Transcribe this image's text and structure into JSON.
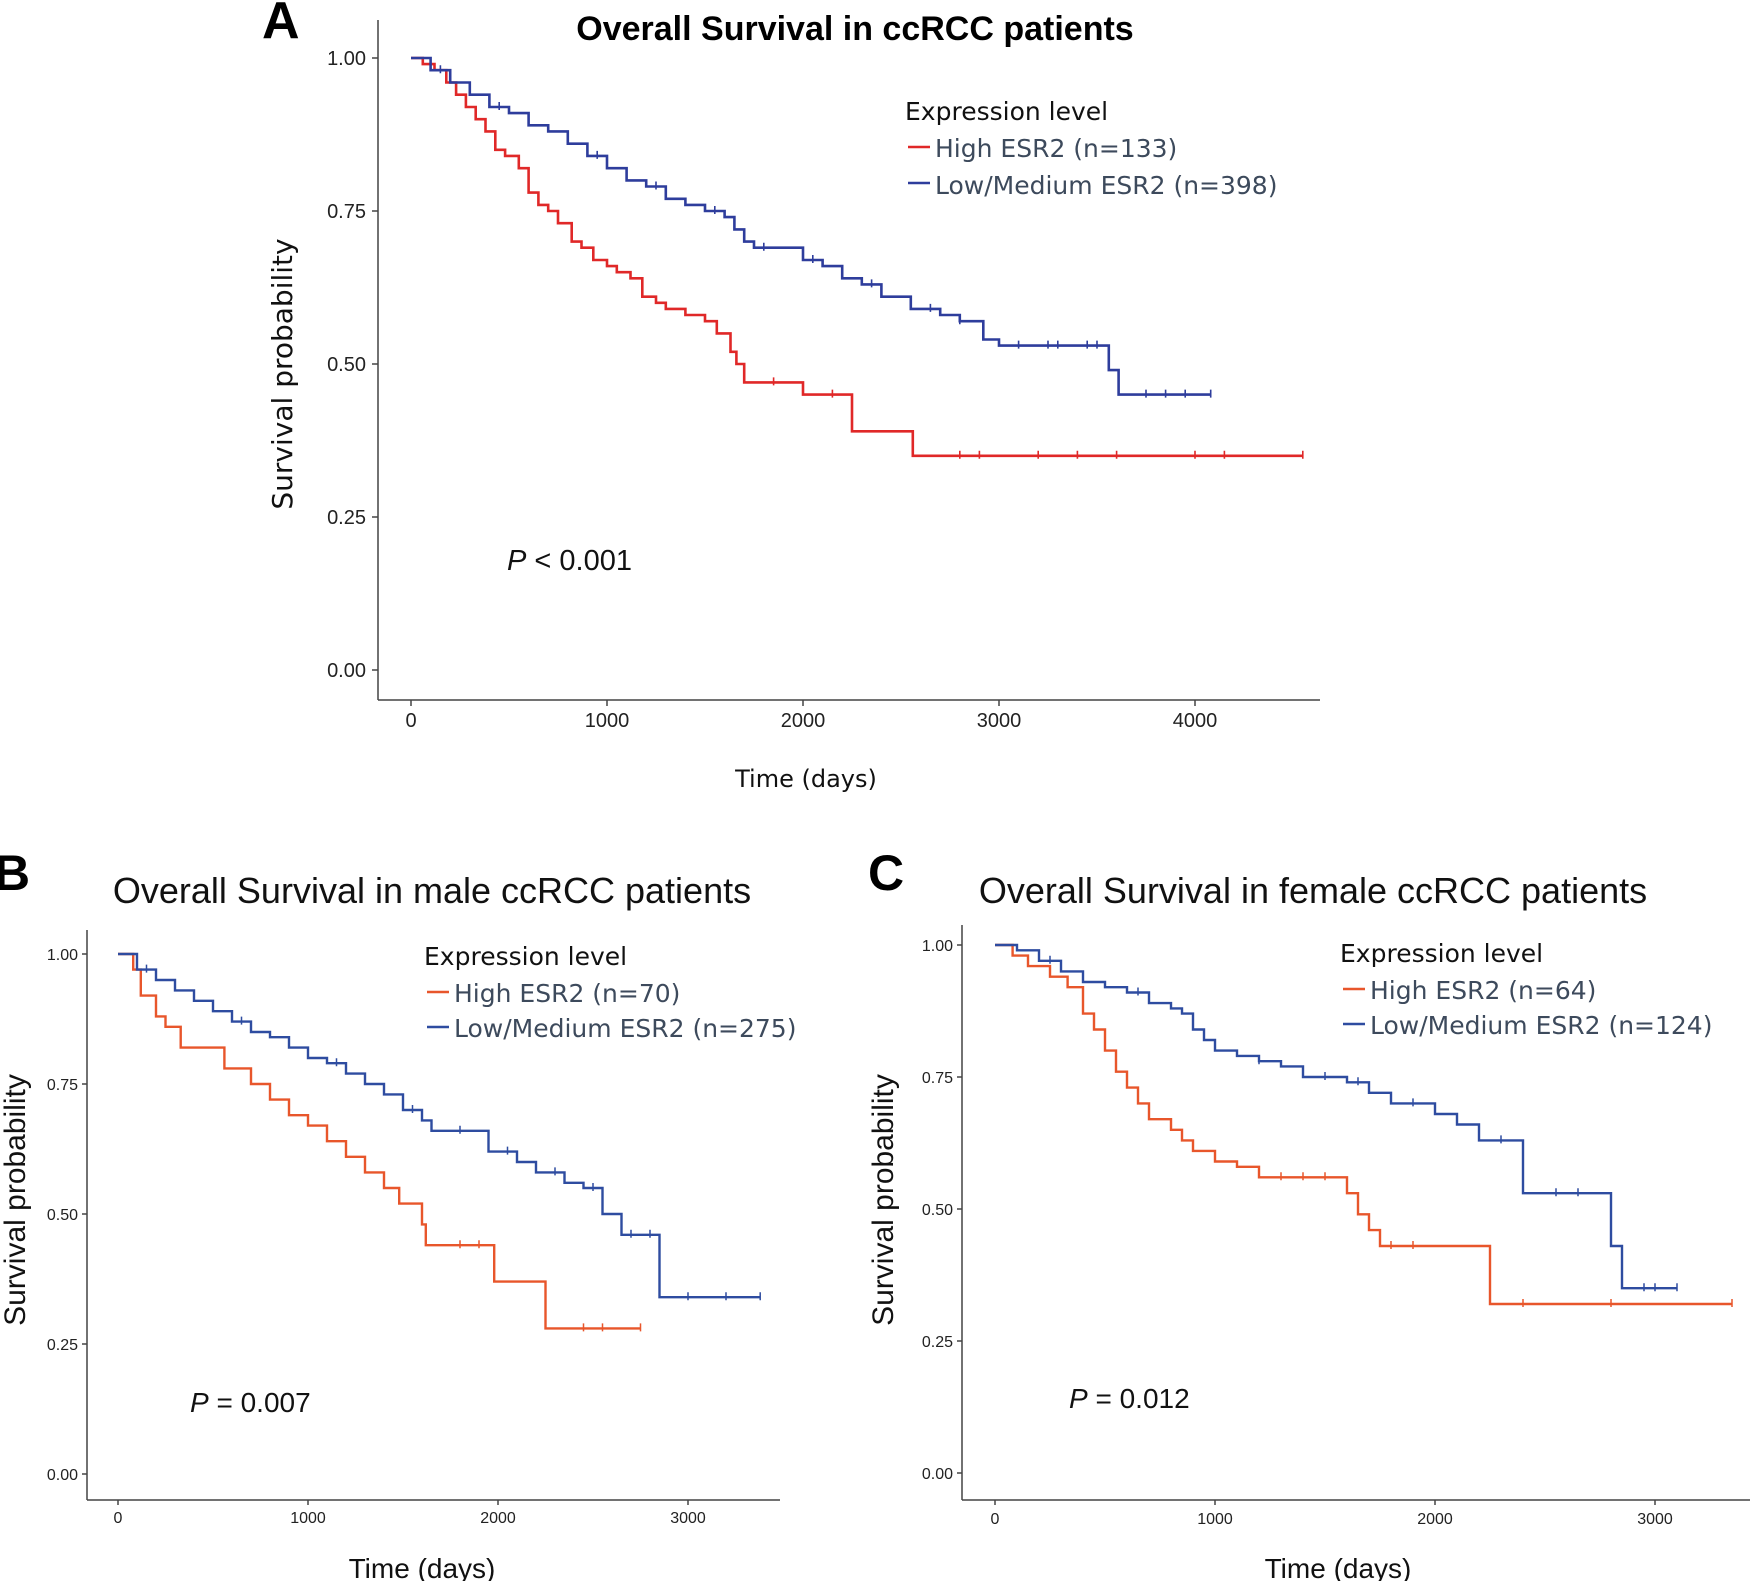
{
  "chart_data": [
    {
      "panel": "A",
      "type": "line",
      "step": true,
      "title": "Overall Survival in ccRCC patients",
      "xlabel": "Time (days)",
      "ylabel": "Survival probability",
      "xlim": [
        -150,
        4650
      ],
      "ylim": [
        -0.05,
        1.06
      ],
      "xticks": [
        0,
        1000,
        2000,
        3000,
        4000
      ],
      "xtick_labels": [
        "0",
        "1000",
        "2000",
        "3000",
        "4000"
      ],
      "yticks": [
        0,
        0.25,
        0.5,
        0.75,
        1.0
      ],
      "ytick_labels": [
        "0.00",
        "0.25",
        "0.50",
        "0.75",
        "1.00"
      ],
      "legend_title": "Expression level",
      "annotation": {
        "italic": "P",
        "text": " < 0.001"
      },
      "series": [
        {
          "name": "High ESR2 (n=133)",
          "color": "#e02828",
          "x": [
            0,
            60,
            120,
            180,
            230,
            280,
            330,
            380,
            430,
            480,
            550,
            600,
            650,
            700,
            750,
            820,
            870,
            930,
            1000,
            1050,
            1120,
            1180,
            1250,
            1300,
            1400,
            1500,
            1560,
            1630,
            1660,
            1700,
            1850,
            2000,
            2150,
            2250,
            2300,
            2450,
            2560,
            4550
          ],
          "values": [
            1.0,
            0.99,
            0.98,
            0.96,
            0.94,
            0.92,
            0.9,
            0.88,
            0.85,
            0.84,
            0.82,
            0.78,
            0.76,
            0.75,
            0.73,
            0.7,
            0.69,
            0.67,
            0.66,
            0.65,
            0.64,
            0.61,
            0.6,
            0.59,
            0.58,
            0.57,
            0.55,
            0.52,
            0.5,
            0.47,
            0.47,
            0.45,
            0.45,
            0.39,
            0.39,
            0.39,
            0.35,
            0.35
          ],
          "censor_x": [
            1850,
            2150,
            2800,
            2900,
            3200,
            3400,
            3600,
            4000,
            4150,
            4550
          ]
        },
        {
          "name": "Low/Medium ESR2 (n=398)",
          "color": "#2e3d9c",
          "x": [
            0,
            100,
            200,
            300,
            400,
            500,
            600,
            700,
            800,
            900,
            1000,
            1100,
            1200,
            1300,
            1400,
            1500,
            1600,
            1650,
            1700,
            1750,
            1900,
            2000,
            2100,
            2200,
            2300,
            2400,
            2550,
            2700,
            2800,
            2850,
            2920,
            3000,
            3200,
            3400,
            3560,
            3610,
            3700,
            4080
          ],
          "values": [
            1.0,
            0.98,
            0.96,
            0.94,
            0.92,
            0.91,
            0.89,
            0.88,
            0.86,
            0.84,
            0.82,
            0.8,
            0.79,
            0.77,
            0.76,
            0.75,
            0.74,
            0.72,
            0.7,
            0.69,
            0.69,
            0.67,
            0.66,
            0.64,
            0.63,
            0.61,
            0.59,
            0.58,
            0.57,
            0.57,
            0.54,
            0.53,
            0.53,
            0.53,
            0.49,
            0.45,
            0.45,
            0.45
          ],
          "censor_x": [
            150,
            450,
            950,
            1250,
            1550,
            1800,
            2050,
            2350,
            2650,
            2800,
            3100,
            3250,
            3300,
            3450,
            3500,
            3750,
            3850,
            3950,
            4080
          ]
        }
      ]
    },
    {
      "panel": "B",
      "type": "line",
      "step": true,
      "title": "Overall Survival in male ccRCC patients",
      "xlabel": "Time (days)",
      "ylabel": "Survival probability",
      "xlim": [
        -150,
        3600
      ],
      "ylim": [
        -0.06,
        1.07
      ],
      "xticks": [
        0,
        1000,
        2000,
        3000
      ],
      "xtick_labels": [
        "0",
        "1000",
        "2000",
        "3000"
      ],
      "yticks": [
        0,
        0.25,
        0.5,
        0.75,
        1.0
      ],
      "ytick_labels": [
        "0.00",
        "0.25",
        "0.50",
        "0.75",
        "1.00"
      ],
      "legend_title": "Expression level",
      "annotation": {
        "italic": "P",
        "text": " = 0.007"
      },
      "series": [
        {
          "name": "High ESR2 (n=70)",
          "color": "#e8562b",
          "x": [
            0,
            80,
            120,
            200,
            250,
            330,
            560,
            700,
            800,
            900,
            1000,
            1100,
            1200,
            1300,
            1400,
            1480,
            1600,
            1620,
            1980,
            2250,
            2750
          ],
          "values": [
            1.0,
            0.97,
            0.92,
            0.88,
            0.86,
            0.82,
            0.78,
            0.75,
            0.72,
            0.69,
            0.67,
            0.64,
            0.61,
            0.58,
            0.55,
            0.52,
            0.48,
            0.44,
            0.37,
            0.28,
            0.28
          ],
          "censor_x": [
            1800,
            1900,
            2450,
            2550,
            2750
          ]
        },
        {
          "name": "Low/Medium ESR2 (n=275)",
          "color": "#2e4ca0",
          "x": [
            0,
            100,
            200,
            300,
            400,
            500,
            600,
            700,
            800,
            900,
            1000,
            1100,
            1200,
            1300,
            1400,
            1500,
            1600,
            1650,
            1900,
            1950,
            2100,
            2200,
            2350,
            2450,
            2550,
            2650,
            2850,
            3380
          ],
          "values": [
            1.0,
            0.97,
            0.95,
            0.93,
            0.91,
            0.89,
            0.87,
            0.85,
            0.84,
            0.82,
            0.8,
            0.79,
            0.77,
            0.75,
            0.73,
            0.7,
            0.68,
            0.66,
            0.66,
            0.62,
            0.6,
            0.58,
            0.56,
            0.55,
            0.5,
            0.46,
            0.34,
            0.34
          ],
          "censor_x": [
            150,
            650,
            1150,
            1550,
            1800,
            2050,
            2300,
            2500,
            2700,
            2800,
            3000,
            3200,
            3380
          ]
        }
      ]
    },
    {
      "panel": "C",
      "type": "line",
      "step": true,
      "title": "Overall Survival in female ccRCC patients",
      "xlabel": "Time (days)",
      "ylabel": "Survival probability",
      "xlim": [
        -150,
        3450
      ],
      "ylim": [
        -0.06,
        1.07
      ],
      "xticks": [
        0,
        1000,
        2000,
        3000
      ],
      "xtick_labels": [
        "0",
        "1000",
        "2000",
        "3000"
      ],
      "yticks": [
        0,
        0.25,
        0.5,
        0.75,
        1.0
      ],
      "ytick_labels": [
        "0.00",
        "0.25",
        "0.50",
        "0.75",
        "1.00"
      ],
      "legend_title": "Expression level",
      "annotation": {
        "italic": "P",
        "text": " = 0.012"
      },
      "series": [
        {
          "name": "High ESR2 (n=64)",
          "color": "#e8562b",
          "x": [
            0,
            80,
            150,
            250,
            330,
            400,
            450,
            500,
            550,
            600,
            650,
            700,
            800,
            850,
            900,
            1000,
            1100,
            1200,
            1400,
            1600,
            1650,
            1700,
            1750,
            2000,
            2200,
            2250,
            3350
          ],
          "values": [
            1.0,
            0.98,
            0.96,
            0.94,
            0.92,
            0.87,
            0.84,
            0.8,
            0.76,
            0.73,
            0.7,
            0.67,
            0.65,
            0.63,
            0.61,
            0.59,
            0.58,
            0.56,
            0.56,
            0.53,
            0.49,
            0.46,
            0.43,
            0.43,
            0.43,
            0.32,
            0.32
          ],
          "censor_x": [
            1300,
            1400,
            1500,
            1800,
            1900,
            2400,
            2800,
            3350
          ]
        },
        {
          "name": "Low/Medium ESR2 (n=124)",
          "color": "#2e4ca0",
          "x": [
            0,
            100,
            200,
            300,
            400,
            500,
            600,
            700,
            800,
            850,
            900,
            950,
            1000,
            1100,
            1200,
            1300,
            1400,
            1600,
            1700,
            1800,
            2000,
            2100,
            2200,
            2300,
            2400,
            2500,
            2600,
            2800,
            2850,
            3100
          ],
          "values": [
            1.0,
            0.99,
            0.97,
            0.95,
            0.93,
            0.92,
            0.91,
            0.89,
            0.88,
            0.87,
            0.84,
            0.82,
            0.8,
            0.79,
            0.78,
            0.77,
            0.75,
            0.74,
            0.72,
            0.7,
            0.68,
            0.66,
            0.63,
            0.63,
            0.53,
            0.53,
            0.53,
            0.43,
            0.35,
            0.35
          ],
          "censor_x": [
            250,
            650,
            1200,
            1500,
            1650,
            1900,
            2300,
            2550,
            2650,
            2950,
            3000,
            3100
          ]
        }
      ]
    }
  ]
}
